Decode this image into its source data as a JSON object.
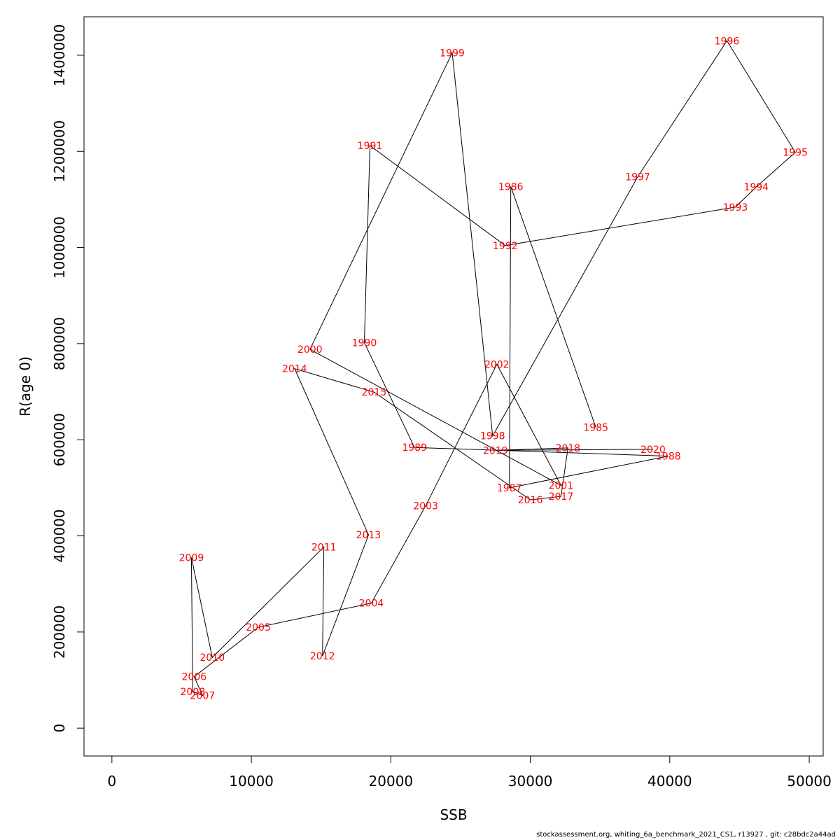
{
  "chart_data": {
    "type": "line",
    "xlabel": "SSB",
    "ylabel": "R(age 0)",
    "xlim": [
      -2000,
      51000
    ],
    "ylim": [
      -58000,
      1480000
    ],
    "x_ticks": [
      0,
      10000,
      20000,
      30000,
      40000,
      50000
    ],
    "y_ticks": [
      0,
      200000,
      400000,
      600000,
      800000,
      1000000,
      1200000,
      1400000
    ],
    "grid": false,
    "colors": {
      "line": "#000000",
      "labels": "#ff0000"
    },
    "points": [
      {
        "label": "1985",
        "x": 34700,
        "y": 626000
      },
      {
        "label": "1986",
        "x": 28600,
        "y": 1127000
      },
      {
        "label": "1987",
        "x": 28500,
        "y": 500000
      },
      {
        "label": "1988",
        "x": 39900,
        "y": 566000
      },
      {
        "label": "1989",
        "x": 21700,
        "y": 584000
      },
      {
        "label": "1990",
        "x": 18100,
        "y": 802000
      },
      {
        "label": "1991",
        "x": 18500,
        "y": 1212000
      },
      {
        "label": "1992",
        "x": 28200,
        "y": 1004000
      },
      {
        "label": "1993",
        "x": 44700,
        "y": 1084000
      },
      {
        "label": "1994",
        "x": 46200,
        "y": 1126000
      },
      {
        "label": "1995",
        "x": 49000,
        "y": 1198000
      },
      {
        "label": "1996",
        "x": 44100,
        "y": 1430000
      },
      {
        "label": "1997",
        "x": 37700,
        "y": 1147000
      },
      {
        "label": "1998",
        "x": 27300,
        "y": 608000
      },
      {
        "label": "1999",
        "x": 24400,
        "y": 1405000
      },
      {
        "label": "2000",
        "x": 14200,
        "y": 788000
      },
      {
        "label": "2001",
        "x": 32200,
        "y": 505000
      },
      {
        "label": "2002",
        "x": 27600,
        "y": 757000
      },
      {
        "label": "2003",
        "x": 22500,
        "y": 463000
      },
      {
        "label": "2004",
        "x": 18600,
        "y": 260000
      },
      {
        "label": "2005",
        "x": 10500,
        "y": 210000
      },
      {
        "label": "2006",
        "x": 5900,
        "y": 107000
      },
      {
        "label": "2007",
        "x": 6500,
        "y": 68000
      },
      {
        "label": "2008",
        "x": 5800,
        "y": 76000
      },
      {
        "label": "2009",
        "x": 5700,
        "y": 355000
      },
      {
        "label": "2010",
        "x": 7200,
        "y": 147000
      },
      {
        "label": "2011",
        "x": 15200,
        "y": 377000
      },
      {
        "label": "2012",
        "x": 15100,
        "y": 150000
      },
      {
        "label": "2013",
        "x": 18400,
        "y": 402000
      },
      {
        "label": "2014",
        "x": 13100,
        "y": 748000
      },
      {
        "label": "2015",
        "x": 18800,
        "y": 699000
      },
      {
        "label": "2016",
        "x": 30000,
        "y": 475000
      },
      {
        "label": "2017",
        "x": 32200,
        "y": 482000
      },
      {
        "label": "2018",
        "x": 32700,
        "y": 583000
      },
      {
        "label": "2019",
        "x": 27500,
        "y": 578000
      },
      {
        "label": "2020",
        "x": 38800,
        "y": 580000
      }
    ]
  },
  "footer": "stockassessment.org, whiting_6a_benchmark_2021_CS1, r13927 , git: c28bdc2a44ad"
}
